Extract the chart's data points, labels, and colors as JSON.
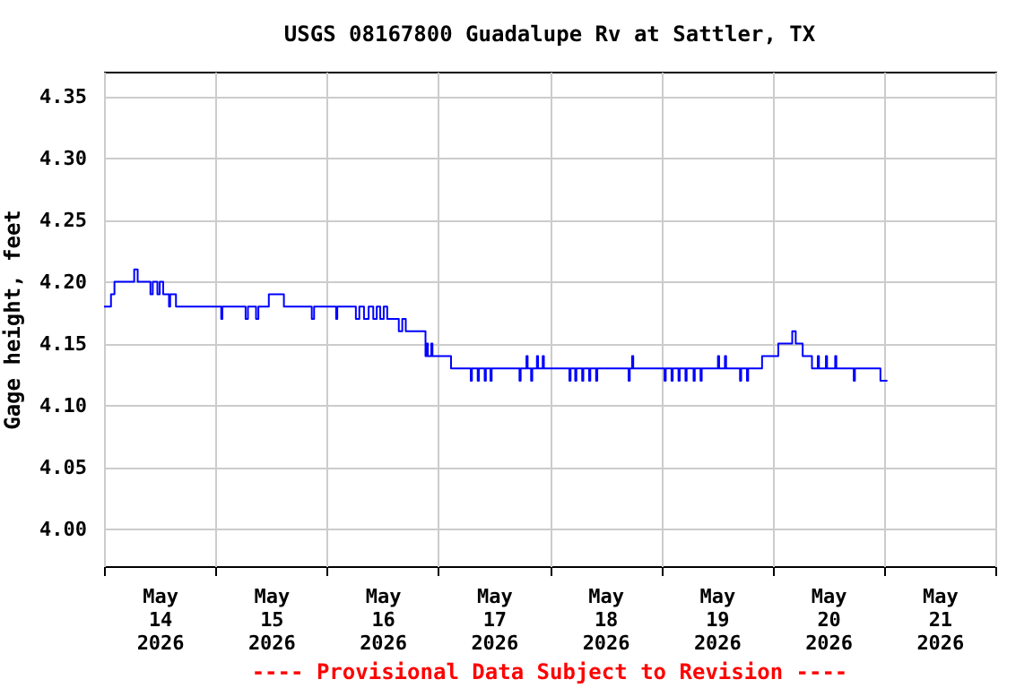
{
  "chart_data": {
    "type": "step",
    "title": "USGS 08167800 Guadalupe Rv at Sattler, TX",
    "ylabel": "Gage height, feet",
    "annotations": [
      "---- Provisional Data Subject to Revision ----"
    ],
    "series": [
      {
        "color": "#0000ff",
        "x": [
          "2026-05-14T00:00",
          "2026-05-14T01:30",
          "2026-05-14T02:15",
          "2026-05-14T06:30",
          "2026-05-14T07:15",
          "2026-05-14T10:00",
          "2026-05-14T10:30",
          "2026-05-14T11:30",
          "2026-05-14T12:00",
          "2026-05-14T12:45",
          "2026-05-14T14:00",
          "2026-05-14T14:15",
          "2026-05-14T15:30",
          "2026-05-15T01:15",
          "2026-05-15T01:30",
          "2026-05-15T06:30",
          "2026-05-15T07:00",
          "2026-05-15T08:45",
          "2026-05-15T09:15",
          "2026-05-15T11:30",
          "2026-05-15T14:45",
          "2026-05-15T20:45",
          "2026-05-15T21:15",
          "2026-05-16T02:00",
          "2026-05-16T02:15",
          "2026-05-16T06:15",
          "2026-05-16T07:00",
          "2026-05-16T08:00",
          "2026-05-16T09:00",
          "2026-05-16T10:00",
          "2026-05-16T10:45",
          "2026-05-16T11:30",
          "2026-05-16T12:15",
          "2026-05-16T13:00",
          "2026-05-16T14:00",
          "2026-05-16T15:30",
          "2026-05-16T16:15",
          "2026-05-16T17:00",
          "2026-05-16T17:45",
          "2026-05-16T21:15",
          "2026-05-16T21:30",
          "2026-05-16T21:45",
          "2026-05-16T22:30",
          "2026-05-16T22:45",
          "2026-05-17T02:45",
          "2026-05-17T07:00",
          "2026-05-17T07:15",
          "2026-05-17T08:30",
          "2026-05-17T08:45",
          "2026-05-17T10:00",
          "2026-05-17T10:15",
          "2026-05-17T11:15",
          "2026-05-17T11:30",
          "2026-05-17T17:30",
          "2026-05-17T17:45",
          "2026-05-17T19:00",
          "2026-05-17T19:15",
          "2026-05-17T20:00",
          "2026-05-17T20:15",
          "2026-05-17T21:15",
          "2026-05-17T21:30",
          "2026-05-17T22:30",
          "2026-05-17T22:45",
          "2026-05-18T04:15",
          "2026-05-18T04:30",
          "2026-05-18T05:30",
          "2026-05-18T05:45",
          "2026-05-18T07:00",
          "2026-05-18T07:15",
          "2026-05-18T08:30",
          "2026-05-18T08:45",
          "2026-05-18T10:00",
          "2026-05-18T10:15",
          "2026-05-18T17:00",
          "2026-05-18T17:15",
          "2026-05-18T17:45",
          "2026-05-18T18:00",
          "2026-05-19T00:45",
          "2026-05-19T01:00",
          "2026-05-19T02:15",
          "2026-05-19T02:30",
          "2026-05-19T03:45",
          "2026-05-19T04:00",
          "2026-05-19T05:15",
          "2026-05-19T05:30",
          "2026-05-19T07:00",
          "2026-05-19T07:15",
          "2026-05-19T08:30",
          "2026-05-19T08:45",
          "2026-05-19T12:15",
          "2026-05-19T12:30",
          "2026-05-19T13:45",
          "2026-05-19T14:00",
          "2026-05-19T17:00",
          "2026-05-19T17:15",
          "2026-05-19T18:30",
          "2026-05-19T18:45",
          "2026-05-19T21:45",
          "2026-05-20T01:15",
          "2026-05-20T04:15",
          "2026-05-20T05:00",
          "2026-05-20T06:30",
          "2026-05-20T08:30",
          "2026-05-20T09:45",
          "2026-05-20T10:00",
          "2026-05-20T11:30",
          "2026-05-20T11:45",
          "2026-05-20T13:30",
          "2026-05-20T13:45",
          "2026-05-20T17:30",
          "2026-05-20T17:45",
          "2026-05-20T23:15",
          "2026-05-21T00:45"
        ],
        "values": [
          4.18,
          4.19,
          4.2,
          4.21,
          4.2,
          4.19,
          4.2,
          4.19,
          4.2,
          4.19,
          4.18,
          4.19,
          4.18,
          4.17,
          4.18,
          4.17,
          4.18,
          4.17,
          4.18,
          4.19,
          4.18,
          4.17,
          4.18,
          4.17,
          4.18,
          4.17,
          4.18,
          4.17,
          4.18,
          4.17,
          4.18,
          4.17,
          4.18,
          4.17,
          4.17,
          4.16,
          4.17,
          4.16,
          4.16,
          4.14,
          4.15,
          4.14,
          4.15,
          4.14,
          4.13,
          4.12,
          4.13,
          4.12,
          4.13,
          4.12,
          4.13,
          4.12,
          4.13,
          4.12,
          4.13,
          4.14,
          4.13,
          4.12,
          4.13,
          4.14,
          4.13,
          4.14,
          4.13,
          4.12,
          4.13,
          4.12,
          4.13,
          4.12,
          4.13,
          4.12,
          4.13,
          4.12,
          4.13,
          4.12,
          4.13,
          4.14,
          4.13,
          4.12,
          4.13,
          4.12,
          4.13,
          4.12,
          4.13,
          4.12,
          4.13,
          4.12,
          4.13,
          4.12,
          4.13,
          4.14,
          4.13,
          4.14,
          4.13,
          4.12,
          4.13,
          4.12,
          4.13,
          4.14,
          4.15,
          4.16,
          4.15,
          4.14,
          4.13,
          4.14,
          4.13,
          4.14,
          4.13,
          4.14,
          4.13,
          4.12,
          4.13,
          4.12,
          4.12
        ]
      }
    ],
    "xlim": [
      "2026-05-14T00:00",
      "2026-05-22T00:00"
    ],
    "xticks": [
      {
        "value": "2026-05-14T00:00",
        "label": null
      },
      {
        "value": "2026-05-14T12:00",
        "label": "May\n14\n2026"
      },
      {
        "value": "2026-05-15T00:00",
        "label": null
      },
      {
        "value": "2026-05-15T12:00",
        "label": "May\n15\n2026"
      },
      {
        "value": "2026-05-16T00:00",
        "label": null
      },
      {
        "value": "2026-05-16T12:00",
        "label": "May\n16\n2026"
      },
      {
        "value": "2026-05-17T00:00",
        "label": null
      },
      {
        "value": "2026-05-17T12:00",
        "label": "May\n17\n2026"
      },
      {
        "value": "2026-05-18T00:00",
        "label": null
      },
      {
        "value": "2026-05-18T12:00",
        "label": "May\n18\n2026"
      },
      {
        "value": "2026-05-19T00:00",
        "label": null
      },
      {
        "value": "2026-05-19T12:00",
        "label": "May\n19\n2026"
      },
      {
        "value": "2026-05-20T00:00",
        "label": null
      },
      {
        "value": "2026-05-20T12:00",
        "label": "May\n20\n2026"
      },
      {
        "value": "2026-05-21T00:00",
        "label": null
      },
      {
        "value": "2026-05-21T12:00",
        "label": "May\n21\n2026"
      },
      {
        "value": "2026-05-22T00:00",
        "label": null
      }
    ],
    "ylim": [
      3.97,
      4.37
    ],
    "yticks": [
      {
        "value": 4.0,
        "label": "4.00"
      },
      {
        "value": 4.05,
        "label": "4.05"
      },
      {
        "value": 4.1,
        "label": "4.10"
      },
      {
        "value": 4.15,
        "label": "4.15"
      },
      {
        "value": 4.2,
        "label": "4.20"
      },
      {
        "value": 4.25,
        "label": "4.25"
      },
      {
        "value": 4.3,
        "label": "4.30"
      },
      {
        "value": 4.35,
        "label": "4.35"
      }
    ],
    "grid": true
  }
}
